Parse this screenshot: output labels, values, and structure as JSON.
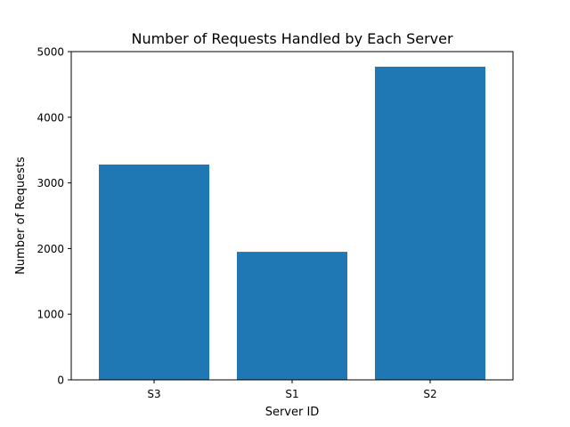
{
  "chart_data": {
    "type": "bar",
    "title": "Number of Requests Handled by Each Server",
    "xlabel": "Server ID",
    "ylabel": "Number of Requests",
    "categories": [
      "S3",
      "S1",
      "S2"
    ],
    "values": [
      3280,
      1950,
      4770
    ],
    "ylim": [
      0,
      5000
    ],
    "yticks": [
      0,
      1000,
      2000,
      3000,
      4000,
      5000
    ],
    "bar_color": "#1f77b4",
    "grid": false,
    "legend": "none"
  }
}
